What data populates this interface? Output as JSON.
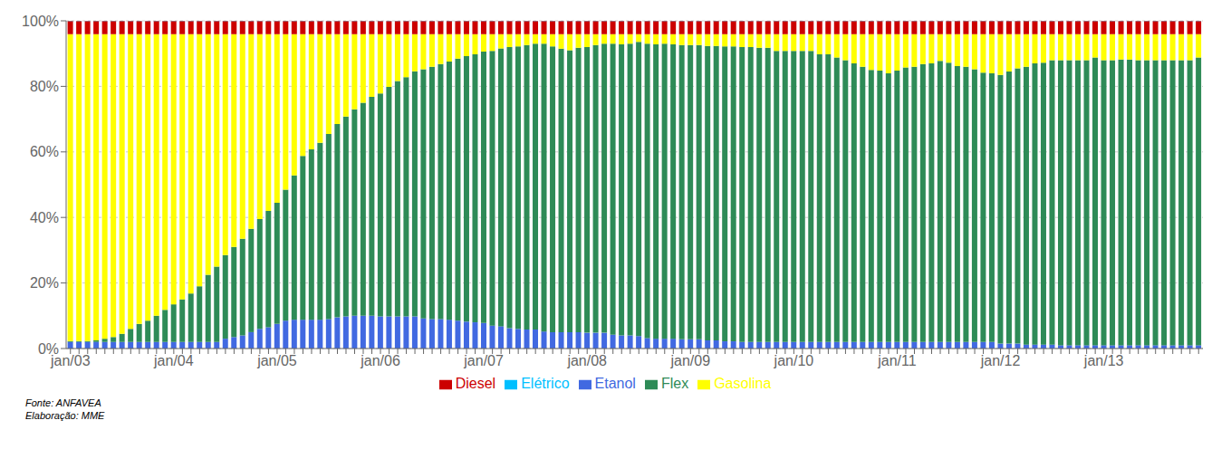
{
  "chart_data": {
    "type": "bar",
    "stacked": true,
    "grid": "y",
    "legend": "bottom",
    "annotations": [
      "Fonte: ANFAVEA\nElaboração: MME"
    ],
    "ylim": [
      0,
      1.0
    ],
    "yticks": [
      {
        "value": 0,
        "label": "0%"
      },
      {
        "value": 0.2,
        "label": "20%"
      },
      {
        "value": 0.4,
        "label": "40%"
      },
      {
        "value": 0.6,
        "label": "60%"
      },
      {
        "value": 0.8,
        "label": "80%"
      },
      {
        "value": 1.0,
        "label": "100%"
      }
    ],
    "categories": [
      "jan/03",
      null,
      null,
      null,
      null,
      null,
      null,
      null,
      null,
      null,
      null,
      null,
      "jan/04",
      null,
      null,
      null,
      null,
      null,
      null,
      null,
      null,
      null,
      null,
      null,
      "jan/05",
      null,
      null,
      null,
      null,
      null,
      null,
      null,
      null,
      null,
      null,
      null,
      "jan/06",
      null,
      null,
      null,
      null,
      null,
      null,
      null,
      null,
      null,
      null,
      null,
      "jan/07",
      null,
      null,
      null,
      null,
      null,
      null,
      null,
      null,
      null,
      null,
      null,
      "jan/08",
      null,
      null,
      null,
      null,
      null,
      null,
      null,
      null,
      null,
      null,
      null,
      "jan/09",
      null,
      null,
      null,
      null,
      null,
      null,
      null,
      null,
      null,
      null,
      null,
      "jan/10",
      null,
      null,
      null,
      null,
      null,
      null,
      null,
      null,
      null,
      null,
      null,
      "jan/11",
      null,
      null,
      null,
      null,
      null,
      null,
      null,
      null,
      null,
      null,
      null,
      "jan/12",
      null,
      null,
      null,
      null,
      null,
      null,
      null,
      null,
      null,
      null,
      null,
      "jan/13",
      null,
      null,
      null,
      null,
      null,
      null,
      null,
      null,
      null,
      null,
      null
    ],
    "series": [
      {
        "name": "Etanol",
        "color": "#4169E1",
        "values": [
          0.02,
          0.02,
          0.02,
          0.02,
          0.02,
          0.02,
          0.02,
          0.02,
          0.02,
          0.02,
          0.02,
          0.02,
          0.02,
          0.02,
          0.02,
          0.02,
          0.02,
          0.02,
          0.03,
          0.035,
          0.04,
          0.05,
          0.06,
          0.065,
          0.075,
          0.085,
          0.088,
          0.088,
          0.088,
          0.088,
          0.09,
          0.095,
          0.098,
          0.1,
          0.1,
          0.1,
          0.098,
          0.098,
          0.098,
          0.098,
          0.098,
          0.092,
          0.09,
          0.09,
          0.088,
          0.085,
          0.082,
          0.08,
          0.078,
          0.07,
          0.068,
          0.062,
          0.06,
          0.058,
          0.058,
          0.052,
          0.05,
          0.05,
          0.05,
          0.05,
          0.048,
          0.048,
          0.048,
          0.042,
          0.04,
          0.04,
          0.038,
          0.032,
          0.03,
          0.03,
          0.03,
          0.028,
          0.028,
          0.028,
          0.025,
          0.025,
          0.022,
          0.022,
          0.02,
          0.02,
          0.02,
          0.02,
          0.02,
          0.02,
          0.02,
          0.02,
          0.02,
          0.02,
          0.02,
          0.02,
          0.02,
          0.02,
          0.02,
          0.02,
          0.02,
          0.02,
          0.02,
          0.02,
          0.02,
          0.02,
          0.02,
          0.02,
          0.02,
          0.02,
          0.02,
          0.02,
          0.02,
          0.02,
          0.015,
          0.015,
          0.015,
          0.012,
          0.012,
          0.012,
          0.012,
          0.01,
          0.01,
          0.01,
          0.01,
          0.01,
          0.01,
          0.01,
          0.01,
          0.01,
          0.01,
          0.01,
          0.01,
          0.01,
          0.01,
          0.01,
          0.01,
          0.01
        ]
      },
      {
        "name": "Flex",
        "color": "#2E8B57",
        "values": [
          0.003,
          0.003,
          0.003,
          0.005,
          0.01,
          0.015,
          0.025,
          0.04,
          0.055,
          0.065,
          0.08,
          0.098,
          0.115,
          0.13,
          0.148,
          0.17,
          0.205,
          0.23,
          0.255,
          0.275,
          0.295,
          0.315,
          0.335,
          0.355,
          0.37,
          0.4,
          0.44,
          0.5,
          0.52,
          0.54,
          0.565,
          0.59,
          0.61,
          0.63,
          0.65,
          0.668,
          0.68,
          0.7,
          0.718,
          0.73,
          0.748,
          0.76,
          0.77,
          0.778,
          0.788,
          0.8,
          0.81,
          0.818,
          0.828,
          0.838,
          0.848,
          0.858,
          0.862,
          0.868,
          0.872,
          0.878,
          0.872,
          0.865,
          0.86,
          0.868,
          0.872,
          0.878,
          0.882,
          0.888,
          0.888,
          0.89,
          0.898,
          0.898,
          0.898,
          0.9,
          0.898,
          0.898,
          0.898,
          0.898,
          0.898,
          0.898,
          0.9,
          0.9,
          0.9,
          0.9,
          0.898,
          0.898,
          0.888,
          0.888,
          0.888,
          0.888,
          0.888,
          0.878,
          0.878,
          0.868,
          0.86,
          0.85,
          0.84,
          0.83,
          0.828,
          0.82,
          0.828,
          0.838,
          0.84,
          0.848,
          0.85,
          0.858,
          0.852,
          0.842,
          0.84,
          0.832,
          0.822,
          0.82,
          0.82,
          0.83,
          0.84,
          0.848,
          0.858,
          0.86,
          0.868,
          0.87,
          0.87,
          0.87,
          0.87,
          0.878,
          0.87,
          0.87,
          0.872,
          0.872,
          0.87,
          0.87,
          0.87,
          0.87,
          0.87,
          0.87,
          0.87,
          0.878
        ]
      },
      {
        "name": "Gasolina",
        "color": "#FFFF00",
        "values": [
          0.936,
          0.936,
          0.936,
          0.934,
          0.929,
          0.924,
          0.914,
          0.899,
          0.884,
          0.874,
          0.859,
          0.841,
          0.824,
          0.809,
          0.791,
          0.769,
          0.734,
          0.709,
          0.674,
          0.649,
          0.624,
          0.594,
          0.564,
          0.539,
          0.514,
          0.474,
          0.431,
          0.371,
          0.351,
          0.331,
          0.304,
          0.274,
          0.251,
          0.229,
          0.209,
          0.191,
          0.181,
          0.161,
          0.143,
          0.131,
          0.113,
          0.107,
          0.099,
          0.091,
          0.083,
          0.074,
          0.067,
          0.061,
          0.053,
          0.051,
          0.043,
          0.039,
          0.037,
          0.033,
          0.029,
          0.029,
          0.037,
          0.044,
          0.049,
          0.041,
          0.039,
          0.033,
          0.029,
          0.029,
          0.031,
          0.029,
          0.023,
          0.029,
          0.031,
          0.029,
          0.031,
          0.033,
          0.033,
          0.033,
          0.036,
          0.036,
          0.037,
          0.037,
          0.039,
          0.039,
          0.041,
          0.041,
          0.051,
          0.051,
          0.051,
          0.051,
          0.051,
          0.061,
          0.061,
          0.071,
          0.079,
          0.089,
          0.099,
          0.109,
          0.111,
          0.119,
          0.111,
          0.101,
          0.099,
          0.091,
          0.089,
          0.081,
          0.087,
          0.097,
          0.099,
          0.107,
          0.117,
          0.119,
          0.124,
          0.114,
          0.104,
          0.099,
          0.089,
          0.087,
          0.079,
          0.079,
          0.079,
          0.079,
          0.079,
          0.071,
          0.079,
          0.079,
          0.077,
          0.077,
          0.079,
          0.079,
          0.079,
          0.079,
          0.079,
          0.079,
          0.079,
          0.071
        ]
      },
      {
        "name": "Diesel",
        "color": "#CC0000",
        "values": [
          0.04,
          0.04,
          0.04,
          0.04,
          0.04,
          0.04,
          0.04,
          0.04,
          0.04,
          0.04,
          0.04,
          0.04,
          0.04,
          0.04,
          0.04,
          0.04,
          0.04,
          0.04,
          0.04,
          0.04,
          0.04,
          0.04,
          0.04,
          0.04,
          0.04,
          0.04,
          0.04,
          0.04,
          0.04,
          0.04,
          0.04,
          0.04,
          0.04,
          0.04,
          0.04,
          0.04,
          0.04,
          0.04,
          0.04,
          0.04,
          0.04,
          0.04,
          0.04,
          0.04,
          0.04,
          0.04,
          0.04,
          0.04,
          0.04,
          0.04,
          0.04,
          0.04,
          0.04,
          0.04,
          0.04,
          0.04,
          0.04,
          0.04,
          0.04,
          0.04,
          0.04,
          0.04,
          0.04,
          0.04,
          0.04,
          0.04,
          0.04,
          0.04,
          0.04,
          0.04,
          0.04,
          0.04,
          0.04,
          0.04,
          0.04,
          0.04,
          0.04,
          0.04,
          0.04,
          0.04,
          0.04,
          0.04,
          0.04,
          0.04,
          0.04,
          0.04,
          0.04,
          0.04,
          0.04,
          0.04,
          0.04,
          0.04,
          0.04,
          0.04,
          0.04,
          0.04,
          0.04,
          0.04,
          0.04,
          0.04,
          0.04,
          0.04,
          0.04,
          0.04,
          0.04,
          0.04,
          0.04,
          0.04,
          0.04,
          0.04,
          0.04,
          0.04,
          0.04,
          0.04,
          0.04,
          0.04,
          0.04,
          0.04,
          0.04,
          0.04,
          0.04,
          0.04,
          0.04,
          0.04,
          0.04,
          0.04,
          0.04,
          0.04,
          0.04,
          0.04,
          0.04,
          0.04
        ]
      },
      {
        "name": "Elétrico",
        "color": "#00BFFF",
        "values": [
          0.001,
          0.001,
          0.001,
          0.001,
          0.001,
          0.001,
          0.001,
          0.001,
          0.001,
          0.001,
          0.001,
          0.001,
          0.001,
          0.001,
          0.001,
          0.001,
          0.001,
          0.001,
          0.001,
          0.001,
          0.001,
          0.001,
          0.001,
          0.001,
          0.001,
          0.001,
          0.001,
          0.001,
          0.001,
          0.001,
          0.001,
          0.001,
          0.001,
          0.001,
          0.001,
          0.001,
          0.001,
          0.001,
          0.001,
          0.001,
          0.001,
          0.001,
          0.001,
          0.001,
          0.001,
          0.001,
          0.001,
          0.001,
          0.001,
          0.001,
          0.001,
          0.001,
          0.001,
          0.001,
          0.001,
          0.001,
          0.001,
          0.001,
          0.001,
          0.001,
          0.001,
          0.001,
          0.001,
          0.001,
          0.001,
          0.001,
          0.001,
          0.001,
          0.001,
          0.001,
          0.001,
          0.001,
          0.001,
          0.001,
          0.001,
          0.001,
          0.001,
          0.001,
          0.001,
          0.001,
          0.001,
          0.001,
          0.001,
          0.001,
          0.001,
          0.001,
          0.001,
          0.001,
          0.001,
          0.001,
          0.001,
          0.001,
          0.001,
          0.001,
          0.001,
          0.001,
          0.001,
          0.001,
          0.001,
          0.001,
          0.001,
          0.001,
          0.001,
          0.001,
          0.001,
          0.001,
          0.001,
          0.001,
          0.001,
          0.001,
          0.001,
          0.001,
          0.001,
          0.001,
          0.001,
          0.001,
          0.001,
          0.001,
          0.001,
          0.001,
          0.001,
          0.001,
          0.001,
          0.001,
          0.001,
          0.001,
          0.001,
          0.001,
          0.001,
          0.001,
          0.001,
          0.001
        ]
      }
    ]
  }
}
